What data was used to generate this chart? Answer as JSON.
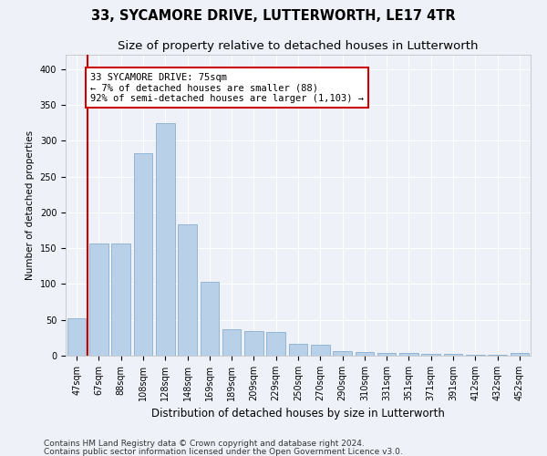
{
  "title": "33, SYCAMORE DRIVE, LUTTERWORTH, LE17 4TR",
  "subtitle": "Size of property relative to detached houses in Lutterworth",
  "xlabel": "Distribution of detached houses by size in Lutterworth",
  "ylabel": "Number of detached properties",
  "categories": [
    "47sqm",
    "67sqm",
    "88sqm",
    "108sqm",
    "128sqm",
    "148sqm",
    "169sqm",
    "189sqm",
    "209sqm",
    "229sqm",
    "250sqm",
    "270sqm",
    "290sqm",
    "310sqm",
    "331sqm",
    "351sqm",
    "371sqm",
    "391sqm",
    "412sqm",
    "432sqm",
    "452sqm"
  ],
  "values": [
    52,
    157,
    157,
    283,
    325,
    183,
    103,
    37,
    35,
    33,
    17,
    15,
    7,
    5,
    4,
    4,
    3,
    2,
    1,
    1,
    4
  ],
  "bar_color": "#b8d0e8",
  "bar_edge_color": "#8ab0d0",
  "vline_x": 0.5,
  "vline_color": "#cc0000",
  "annotation_text": "33 SYCAMORE DRIVE: 75sqm\n← 7% of detached houses are smaller (88)\n92% of semi-detached houses are larger (1,103) →",
  "annotation_box_facecolor": "#ffffff",
  "annotation_box_edgecolor": "#cc0000",
  "ylim": [
    0,
    420
  ],
  "yticks": [
    0,
    50,
    100,
    150,
    200,
    250,
    300,
    350,
    400
  ],
  "footer1": "Contains HM Land Registry data © Crown copyright and database right 2024.",
  "footer2": "Contains public sector information licensed under the Open Government Licence v3.0.",
  "bg_color": "#eef2f8",
  "grid_color": "#ffffff",
  "title_fontsize": 10.5,
  "subtitle_fontsize": 9.5,
  "xlabel_fontsize": 8.5,
  "ylabel_fontsize": 7.5,
  "tick_fontsize": 7,
  "annot_fontsize": 7.5,
  "footer_fontsize": 6.5
}
